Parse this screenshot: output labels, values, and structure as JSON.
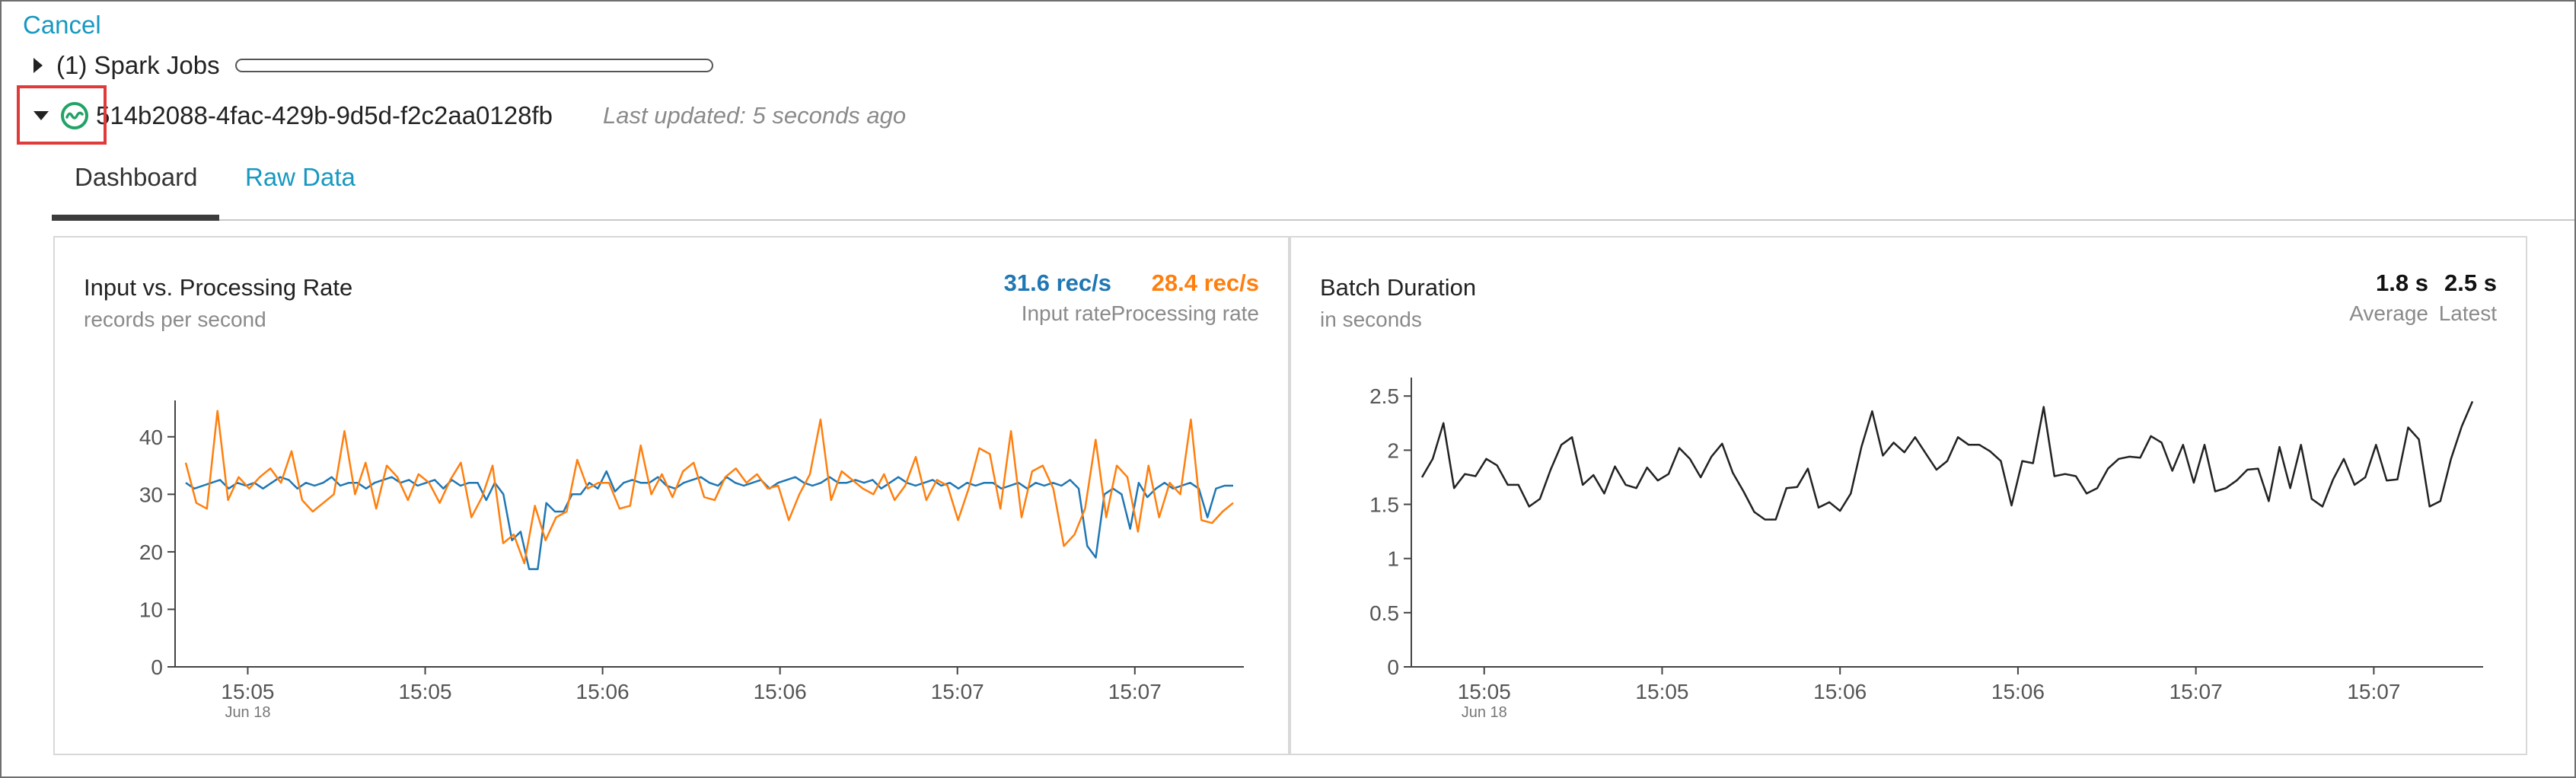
{
  "header": {
    "cancel_label": "Cancel",
    "jobs_label": "(1) Spark Jobs",
    "stream_id": "514b2088-4fac-429b-9d5d-f2c2aa0128fb",
    "last_updated": "Last updated: 5 seconds ago"
  },
  "tabs": [
    {
      "label": "Dashboard",
      "active": true
    },
    {
      "label": "Raw Data",
      "active": false
    }
  ],
  "colors": {
    "accent": "#1798c1",
    "input_rate": "#1f77b4",
    "processing_rate": "#ff7f0e",
    "batch_line": "#222222",
    "status_icon": "#21a366",
    "highlight": "#e03a3a"
  },
  "icons": {
    "jobs_toggle": "caret-right-icon",
    "stream_toggle": "caret-down-icon",
    "status": "streaming-active-icon"
  },
  "panels": {
    "rate": {
      "title": "Input vs. Processing Rate",
      "subtitle": "records per second",
      "stats": [
        {
          "value": "31.6 rec/s",
          "label": "Input rate"
        },
        {
          "value": "28.4 rec/s",
          "label": "Processing rate"
        }
      ]
    },
    "duration": {
      "title": "Batch Duration",
      "subtitle": "in seconds",
      "stats": [
        {
          "value": "1.8 s",
          "label": "Average"
        },
        {
          "value": "2.5 s",
          "label": "Latest"
        }
      ]
    }
  },
  "chart_data": [
    {
      "type": "line",
      "title": "Input vs. Processing Rate",
      "ylim": [
        0,
        45
      ],
      "y_ticks": [
        0,
        10,
        20,
        30,
        40
      ],
      "x_ticks": [
        "15:05",
        "15:05",
        "15:06",
        "15:06",
        "15:07",
        "15:07"
      ],
      "x_sublabel": "Jun 18",
      "grid": false,
      "series": [
        {
          "name": "Input rate",
          "values": [
            32,
            31,
            31.5,
            32,
            32.5,
            31,
            32,
            31.5,
            32,
            31,
            32,
            33,
            32.5,
            31,
            32,
            31.5,
            32,
            33,
            31.5,
            32,
            32,
            31,
            32,
            32.5,
            33,
            32,
            32.5,
            31.5,
            32,
            32.5,
            31,
            32.5,
            31.5,
            32,
            32,
            29,
            32,
            30,
            22,
            23.5,
            17,
            17,
            28.5,
            27,
            27,
            30,
            30,
            32,
            31,
            34,
            30.5,
            32,
            32.5,
            32,
            32,
            33,
            31.5,
            31,
            32,
            32.5,
            33,
            32,
            31.5,
            33,
            32,
            31.5,
            32,
            32.5,
            31,
            32,
            32.5,
            33,
            32,
            31.5,
            32,
            33,
            32,
            32,
            32.5,
            32,
            32.5,
            31,
            32,
            33,
            32,
            31.5,
            32,
            32.5,
            31.5,
            32,
            31,
            32,
            31.5,
            32,
            32,
            31,
            31.5,
            32,
            31,
            32,
            31.5,
            32,
            31.5,
            32.5,
            31,
            21,
            19,
            30,
            31,
            30,
            24,
            32,
            29.5,
            31,
            32,
            31,
            31.5,
            32,
            31,
            26,
            31,
            31.5,
            31.5
          ]
        },
        {
          "name": "Processing rate",
          "values": [
            35.5,
            28.5,
            27.5,
            44.5,
            29,
            33,
            31,
            33,
            34.5,
            32,
            37.5,
            29,
            27,
            28.5,
            30,
            41,
            30,
            35.5,
            27.5,
            35,
            33,
            29,
            33.5,
            32,
            28.5,
            32.5,
            35.5,
            26,
            29.5,
            35,
            21.5,
            23,
            18,
            28,
            22,
            26,
            27,
            36,
            31,
            32,
            32,
            27.5,
            28,
            38.5,
            30,
            33.5,
            29.5,
            34,
            35.5,
            29.5,
            29,
            33,
            34.5,
            32,
            33.5,
            31,
            31.5,
            25.5,
            30,
            33.5,
            43,
            29,
            34,
            32.5,
            31,
            30,
            33.5,
            29,
            31.5,
            36.5,
            29,
            32.5,
            31.5,
            25.5,
            31,
            38,
            37,
            27.5,
            41,
            26,
            34,
            35,
            31,
            21,
            23,
            27.5,
            39.5,
            26,
            35,
            33,
            23.5,
            35,
            26,
            32,
            30,
            43,
            25.5,
            25,
            27,
            28.5
          ]
        }
      ]
    },
    {
      "type": "line",
      "title": "Batch Duration",
      "ylim": [
        0,
        2.6
      ],
      "y_ticks": [
        0,
        0.5,
        1,
        1.5,
        2,
        2.5
      ],
      "x_ticks": [
        "15:05",
        "15:05",
        "15:06",
        "15:06",
        "15:07",
        "15:07"
      ],
      "x_sublabel": "Jun 18",
      "grid": false,
      "series": [
        {
          "values": [
            1.75,
            1.92,
            2.25,
            1.65,
            1.78,
            1.76,
            1.92,
            1.86,
            1.68,
            1.68,
            1.48,
            1.55,
            1.82,
            2.05,
            2.12,
            1.68,
            1.77,
            1.6,
            1.85,
            1.68,
            1.65,
            1.84,
            1.72,
            1.78,
            2.02,
            1.92,
            1.75,
            1.94,
            2.06,
            1.79,
            1.62,
            1.43,
            1.36,
            1.36,
            1.65,
            1.66,
            1.83,
            1.47,
            1.52,
            1.44,
            1.6,
            2.03,
            2.36,
            1.95,
            2.07,
            1.98,
            2.12,
            1.97,
            1.82,
            1.9,
            2.12,
            2.05,
            2.05,
            1.99,
            1.9,
            1.49,
            1.9,
            1.88,
            2.4,
            1.76,
            1.78,
            1.76,
            1.6,
            1.65,
            1.83,
            1.92,
            1.94,
            1.93,
            2.13,
            2.07,
            1.81,
            2.05,
            1.7,
            2.05,
            1.62,
            1.65,
            1.72,
            1.82,
            1.83,
            1.53,
            2.03,
            1.65,
            2.05,
            1.55,
            1.48,
            1.73,
            1.92,
            1.68,
            1.75,
            2.05,
            1.72,
            1.73,
            2.21,
            2.1,
            1.48,
            1.53,
            1.92,
            2.22,
            2.45
          ]
        }
      ]
    }
  ]
}
